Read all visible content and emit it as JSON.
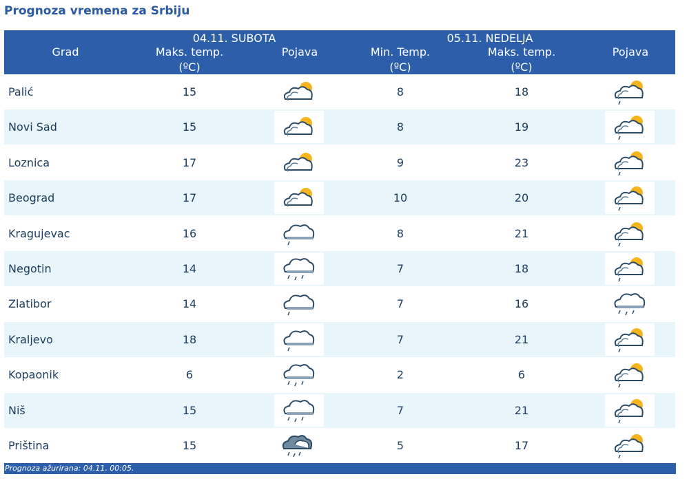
{
  "page_title": "Prognoza vremena za Srbiju",
  "header": {
    "grad": "Grad",
    "day1": "04.11. SUBOTA",
    "day1_max_line1": "Maks. temp.",
    "day1_max_line2": "(ºC)",
    "day1_pojava": "Pojava",
    "day2": "05.11. NEDELJA",
    "day2_min_line1": "Min. Temp.",
    "day2_min_line2": "(ºC)",
    "day2_max_line1": "Maks. temp.",
    "day2_max_line2": "(ºC)",
    "day2_pojava": "Pojava"
  },
  "rows": [
    {
      "city": "Palić",
      "d1_max": "15",
      "d1_icon": "partly-cloudy-sun-icon",
      "d2_min": "8",
      "d2_max": "18",
      "d2_icon": "partly-cloudy-sun-drizzle-icon"
    },
    {
      "city": "Novi Sad",
      "d1_max": "15",
      "d1_icon": "partly-cloudy-sun-icon",
      "d2_min": "8",
      "d2_max": "19",
      "d2_icon": "partly-cloudy-sun-drizzle-icon"
    },
    {
      "city": "Loznica",
      "d1_max": "17",
      "d1_icon": "partly-cloudy-sun-icon",
      "d2_min": "9",
      "d2_max": "23",
      "d2_icon": "partly-cloudy-sun-drizzle-icon"
    },
    {
      "city": "Beograd",
      "d1_max": "17",
      "d1_icon": "partly-cloudy-sun-icon",
      "d2_min": "10",
      "d2_max": "20",
      "d2_icon": "partly-cloudy-sun-drizzle-icon"
    },
    {
      "city": "Kragujevac",
      "d1_max": "16",
      "d1_icon": "cloud-drizzle-icon",
      "d2_min": "8",
      "d2_max": "21",
      "d2_icon": "partly-cloudy-sun-drizzle-icon"
    },
    {
      "city": "Negotin",
      "d1_max": "14",
      "d1_icon": "cloud-rain-icon",
      "d2_min": "7",
      "d2_max": "18",
      "d2_icon": "partly-cloudy-sun-drizzle-icon"
    },
    {
      "city": "Zlatibor",
      "d1_max": "14",
      "d1_icon": "cloud-drizzle-icon",
      "d2_min": "7",
      "d2_max": "16",
      "d2_icon": "cloud-rain-icon"
    },
    {
      "city": "Kraljevo",
      "d1_max": "18",
      "d1_icon": "cloud-drizzle-icon",
      "d2_min": "7",
      "d2_max": "21",
      "d2_icon": "partly-cloudy-sun-drizzle-icon"
    },
    {
      "city": "Kopaonik",
      "d1_max": "6",
      "d1_icon": "cloud-rain-icon",
      "d2_min": "2",
      "d2_max": "6",
      "d2_icon": "partly-cloudy-sun-drizzle-icon"
    },
    {
      "city": "Niš",
      "d1_max": "15",
      "d1_icon": "cloud-rain-icon",
      "d2_min": "7",
      "d2_max": "21",
      "d2_icon": "partly-cloudy-sun-drizzle-icon"
    },
    {
      "city": "Priština",
      "d1_max": "15",
      "d1_icon": "dark-cloud-rain-icon",
      "d2_min": "5",
      "d2_max": "17",
      "d2_icon": "partly-cloudy-sun-drizzle-icon"
    }
  ],
  "footer_text": "Prognoza ažurirana:  04.11. 00:05.",
  "colors": {
    "header_bg": "#2d5eaa",
    "title": "#2a5aa3",
    "alt_row": "#e8f6fb",
    "text": "#1b3c5e"
  }
}
